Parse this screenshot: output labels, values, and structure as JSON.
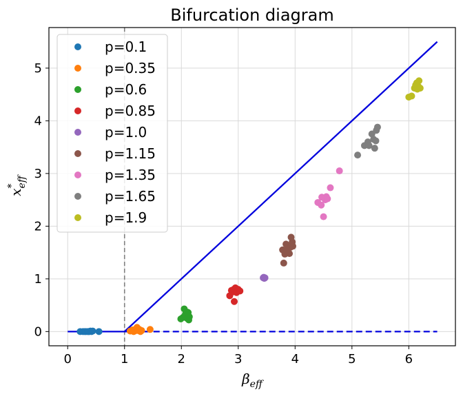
{
  "chart_data": {
    "type": "scatter",
    "title": "Bifurcation diagram",
    "xlabel_main": "β",
    "xlabel_sub": "eff",
    "ylabel_main": "x",
    "ylabel_sup": "*",
    "ylabel_sub": "eff",
    "xlim": [
      -0.33,
      6.82
    ],
    "ylim": [
      -0.27,
      5.77
    ],
    "xticks": [
      0,
      1,
      2,
      3,
      4,
      5,
      6
    ],
    "yticks": [
      0,
      1,
      2,
      3,
      4,
      5
    ],
    "grid": true,
    "legend_position": "top-left",
    "lines": [
      {
        "name": "stable-zero",
        "style": "solid",
        "color": "#0000dd",
        "points": [
          [
            0,
            0
          ],
          [
            1,
            0
          ]
        ]
      },
      {
        "name": "unstable-zero",
        "style": "dashed",
        "color": "#0000dd",
        "points": [
          [
            1,
            0
          ],
          [
            6.5,
            0
          ]
        ]
      },
      {
        "name": "nontrivial-branch",
        "style": "solid",
        "color": "#0000dd",
        "points": [
          [
            1,
            0
          ],
          [
            6.5,
            5.5
          ]
        ]
      }
    ],
    "vline": {
      "x": 1,
      "style": "dashed",
      "color": "#808080"
    },
    "series": [
      {
        "name": "p=0.1",
        "color": "#1f77b4",
        "points": [
          [
            0.22,
            0
          ],
          [
            0.27,
            0
          ],
          [
            0.3,
            0
          ],
          [
            0.32,
            0
          ],
          [
            0.35,
            0
          ],
          [
            0.37,
            0
          ],
          [
            0.38,
            0
          ],
          [
            0.4,
            0.01
          ],
          [
            0.42,
            0
          ],
          [
            0.44,
            0.01
          ],
          [
            0.55,
            0
          ]
        ]
      },
      {
        "name": "p=0.35",
        "color": "#ff7f0e",
        "points": [
          [
            1.1,
            0.01
          ],
          [
            1.14,
            0.03
          ],
          [
            1.16,
            0
          ],
          [
            1.18,
            0.01
          ],
          [
            1.2,
            0.05
          ],
          [
            1.22,
            0.08
          ],
          [
            1.24,
            0.02
          ],
          [
            1.26,
            0.04
          ],
          [
            1.28,
            0
          ],
          [
            1.3,
            0.02
          ],
          [
            1.45,
            0.04
          ]
        ]
      },
      {
        "name": "p=0.6",
        "color": "#2ca02c",
        "points": [
          [
            1.99,
            0.24
          ],
          [
            2.03,
            0.27
          ],
          [
            2.05,
            0.43
          ],
          [
            2.07,
            0.33
          ],
          [
            2.08,
            0.3
          ],
          [
            2.1,
            0.37
          ],
          [
            2.1,
            0.25
          ],
          [
            2.12,
            0.36
          ],
          [
            2.13,
            0.22
          ],
          [
            2.14,
            0.28
          ]
        ]
      },
      {
        "name": "p=0.85",
        "color": "#d62728",
        "points": [
          [
            2.85,
            0.68
          ],
          [
            2.88,
            0.78
          ],
          [
            2.9,
            0.75
          ],
          [
            2.92,
            0.8
          ],
          [
            2.93,
            0.57
          ],
          [
            2.95,
            0.83
          ],
          [
            2.97,
            0.74
          ],
          [
            3.0,
            0.8
          ],
          [
            3.03,
            0.77
          ]
        ]
      },
      {
        "name": "p=1.0",
        "color": "#9467bd",
        "points": [
          [
            3.44,
            1.02
          ],
          [
            3.45,
            1.03
          ],
          [
            3.46,
            1.01
          ],
          [
            3.47,
            1.02
          ]
        ]
      },
      {
        "name": "p=1.15",
        "color": "#8c564b",
        "points": [
          [
            3.78,
            1.55
          ],
          [
            3.8,
            1.3
          ],
          [
            3.82,
            1.47
          ],
          [
            3.84,
            1.66
          ],
          [
            3.86,
            1.52
          ],
          [
            3.87,
            1.57
          ],
          [
            3.9,
            1.48
          ],
          [
            3.92,
            1.6
          ],
          [
            3.93,
            1.79
          ],
          [
            3.95,
            1.7
          ],
          [
            3.96,
            1.62
          ]
        ]
      },
      {
        "name": "p=1.35",
        "color": "#e377c2",
        "points": [
          [
            4.4,
            2.45
          ],
          [
            4.46,
            2.4
          ],
          [
            4.47,
            2.55
          ],
          [
            4.5,
            2.18
          ],
          [
            4.53,
            2.5
          ],
          [
            4.55,
            2.56
          ],
          [
            4.57,
            2.52
          ],
          [
            4.62,
            2.73
          ],
          [
            4.78,
            3.05
          ]
        ]
      },
      {
        "name": "p=1.65",
        "color": "#7f7f7f",
        "points": [
          [
            5.1,
            3.35
          ],
          [
            5.22,
            3.53
          ],
          [
            5.28,
            3.6
          ],
          [
            5.3,
            3.53
          ],
          [
            5.35,
            3.75
          ],
          [
            5.38,
            3.65
          ],
          [
            5.4,
            3.48
          ],
          [
            5.42,
            3.62
          ],
          [
            5.43,
            3.82
          ],
          [
            5.45,
            3.88
          ]
        ]
      },
      {
        "name": "p=1.9",
        "color": "#bcbd22",
        "points": [
          [
            6.0,
            4.45
          ],
          [
            6.05,
            4.47
          ],
          [
            6.1,
            4.62
          ],
          [
            6.12,
            4.68
          ],
          [
            6.14,
            4.72
          ],
          [
            6.15,
            4.6
          ],
          [
            6.17,
            4.65
          ],
          [
            6.18,
            4.76
          ],
          [
            6.2,
            4.62
          ]
        ]
      }
    ]
  }
}
